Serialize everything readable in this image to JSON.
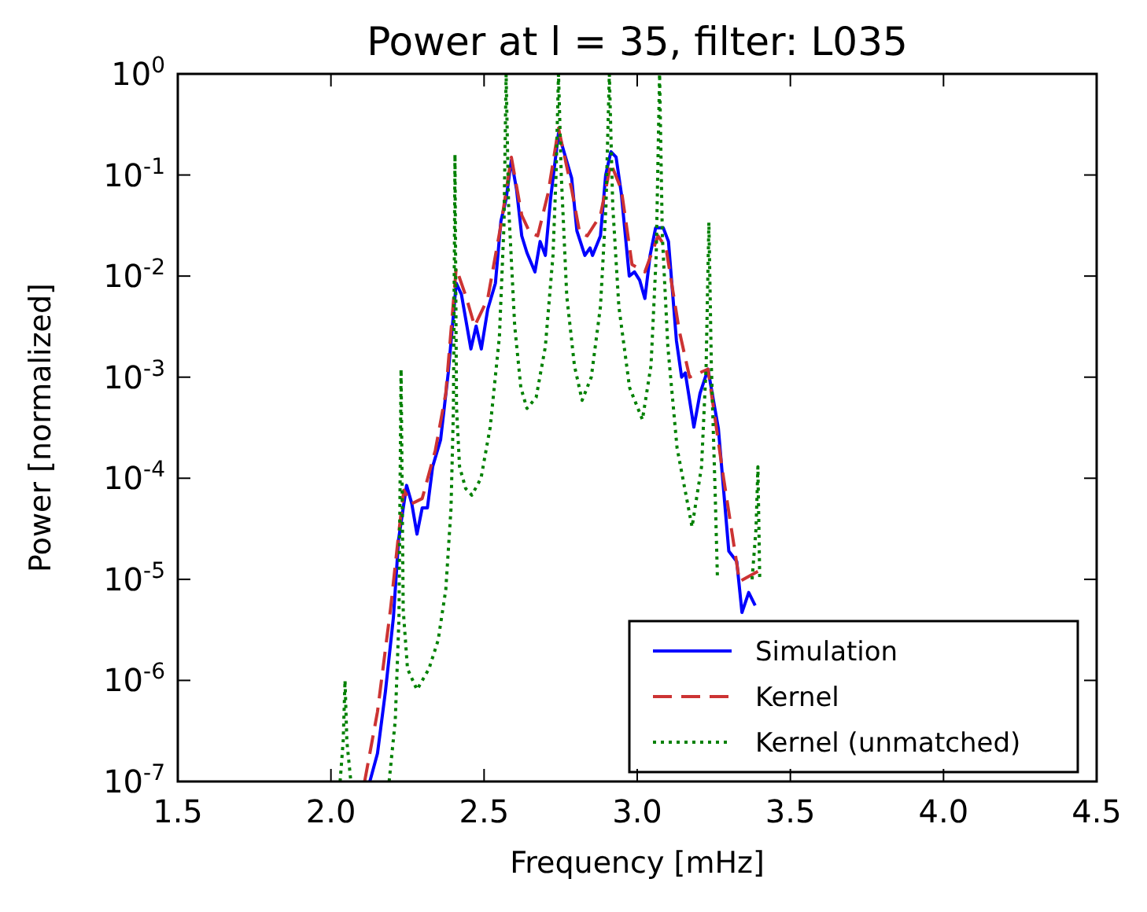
{
  "chart_data": {
    "type": "line",
    "title": "Power at l = 35, filter: L035",
    "xlabel": "Frequency [mHz]",
    "ylabel": "Power [normalized]",
    "log": "y",
    "xlim": [
      1.5,
      4.5
    ],
    "ylim": [
      1e-07,
      1
    ],
    "xticks": [
      1.5,
      {
        "value": 2,
        "label": "2.0"
      },
      2.5,
      {
        "value": 3,
        "label": "3.0"
      },
      3.5,
      {
        "value": 4,
        "label": "4.0"
      },
      4.5
    ],
    "yticks": [
      {
        "value": 1e-07,
        "label": "10$^{-7}$"
      },
      {
        "value": 1e-06,
        "label": "10$^{-6}$"
      },
      {
        "value": 1e-05,
        "label": "10$^{-5}$"
      },
      {
        "value": 0.0001,
        "label": "10$^{-4}$"
      },
      {
        "value": 0.001,
        "label": "10$^{-3}$"
      },
      {
        "value": 0.01,
        "label": "10$^{-2}$"
      },
      {
        "value": 0.1,
        "label": "10$^{-1}$"
      },
      {
        "value": 1,
        "label": "10$^{0}$"
      }
    ],
    "grid": false,
    "legend": "bottom right",
    "series": [
      {
        "name": "Simulation",
        "color": "#0000ff",
        "line_style": "solid",
        "x": [
          2.127,
          2.152,
          2.178,
          2.204,
          2.221,
          2.247,
          2.264,
          2.281,
          2.298,
          2.315,
          2.332,
          2.358,
          2.383,
          2.409,
          2.426,
          2.457,
          2.474,
          2.491,
          2.512,
          2.537,
          2.555,
          2.572,
          2.589,
          2.606,
          2.623,
          2.64,
          2.666,
          2.683,
          2.7,
          2.717,
          2.743,
          2.786,
          2.803,
          2.829,
          2.846,
          2.854,
          2.88,
          2.897,
          2.914,
          2.931,
          2.948,
          2.974,
          2.991,
          3.008,
          3.025,
          3.042,
          3.06,
          3.085,
          3.102,
          3.128,
          3.145,
          3.157,
          3.185,
          3.205,
          3.231,
          3.265,
          3.299,
          3.325,
          3.342,
          3.364,
          3.385
        ],
        "values": [
          1e-07,
          1.9e-07,
          7.8e-07,
          4.2e-06,
          2.5e-05,
          8.5e-05,
          5.6e-05,
          2.8e-05,
          5.1e-05,
          5.1e-05,
          0.00013,
          0.00024,
          0.0011,
          0.0085,
          0.0066,
          0.0019,
          0.0032,
          0.0019,
          0.0047,
          0.0085,
          0.035,
          0.058,
          0.14,
          0.072,
          0.025,
          0.017,
          0.011,
          0.022,
          0.016,
          0.058,
          0.26,
          0.093,
          0.028,
          0.016,
          0.019,
          0.016,
          0.025,
          0.1,
          0.17,
          0.15,
          0.066,
          0.01,
          0.011,
          0.0091,
          0.006,
          0.016,
          0.03,
          0.03,
          0.022,
          0.0023,
          0.001,
          0.0011,
          0.00032,
          0.00069,
          0.0012,
          0.00031,
          1.9e-05,
          1.5e-05,
          4.7e-06,
          7.4e-06,
          5.5e-06
        ]
      },
      {
        "name": "Kernel",
        "color": "#cc3333",
        "line_style": "dashed",
        "x": [
          2.11,
          2.152,
          2.195,
          2.221,
          2.238,
          2.264,
          2.298,
          2.341,
          2.375,
          2.409,
          2.443,
          2.469,
          2.512,
          2.555,
          2.589,
          2.623,
          2.649,
          2.675,
          2.709,
          2.743,
          2.786,
          2.812,
          2.837,
          2.88,
          2.914,
          2.948,
          2.983,
          3.025,
          3.068,
          3.094,
          3.137,
          3.171,
          3.231,
          3.282,
          3.334,
          3.394
        ],
        "values": [
          1e-07,
          4.9e-07,
          5.2e-06,
          2.8e-05,
          7.6e-05,
          5.6e-05,
          6.3e-05,
          0.00019,
          0.00069,
          0.012,
          0.006,
          0.0032,
          0.006,
          0.032,
          0.15,
          0.04,
          0.027,
          0.025,
          0.066,
          0.29,
          0.072,
          0.027,
          0.025,
          0.04,
          0.13,
          0.072,
          0.013,
          0.011,
          0.025,
          0.019,
          0.0029,
          0.001,
          0.0012,
          0.0001,
          9.5e-06,
          1.2e-05
        ]
      },
      {
        "name": "Kernel (unmatched)",
        "color": "#008000",
        "line_style": "dotted",
        "x": [
          2.03,
          2.04,
          2.046,
          2.052,
          2.065,
          2.13,
          2.19,
          2.21,
          2.222,
          2.229,
          2.236,
          2.25,
          2.281,
          2.32,
          2.35,
          2.375,
          2.392,
          2.4,
          2.405,
          2.41,
          2.42,
          2.44,
          2.46,
          2.49,
          2.52,
          2.55,
          2.565,
          2.572,
          2.58,
          2.6,
          2.62,
          2.64,
          2.67,
          2.7,
          2.725,
          2.735,
          2.743,
          2.752,
          2.77,
          2.795,
          2.82,
          2.85,
          2.88,
          2.898,
          2.909,
          2.92,
          2.94,
          2.975,
          3.017,
          3.045,
          3.062,
          3.073,
          3.082,
          3.1,
          3.13,
          3.179,
          3.21,
          3.225,
          3.234,
          3.242,
          3.255,
          3.262,
          3.33,
          3.375,
          3.388,
          3.394,
          3.4
        ],
        "values": [
          1e-07,
          2.5e-07,
          1e-06,
          2.5e-07,
          1e-07,
          null,
          1e-07,
          4e-07,
          4e-06,
          0.0012,
          5e-06,
          1.3e-06,
          8.1e-07,
          1.3e-06,
          2.5e-06,
          7.9e-06,
          5e-05,
          0.0005,
          0.16,
          0.0005,
          0.00013,
          7.9e-05,
          6.8e-05,
          0.0001,
          0.00032,
          0.0025,
          0.032,
          1,
          0.05,
          0.0032,
          0.00079,
          0.00049,
          0.00063,
          0.002,
          0.016,
          0.1,
          1,
          0.1,
          0.0063,
          0.0013,
          0.00059,
          0.001,
          0.005,
          0.05,
          1,
          0.05,
          0.005,
          0.00079,
          0.00038,
          0.0013,
          0.016,
          1,
          0.025,
          0.002,
          0.0002,
          3.3e-05,
          0.00013,
          0.0013,
          0.034,
          0.0013,
          6.3e-05,
          1e-05,
          null,
          1e-05,
          3.2e-05,
          0.00013,
          1e-05
        ]
      }
    ]
  }
}
